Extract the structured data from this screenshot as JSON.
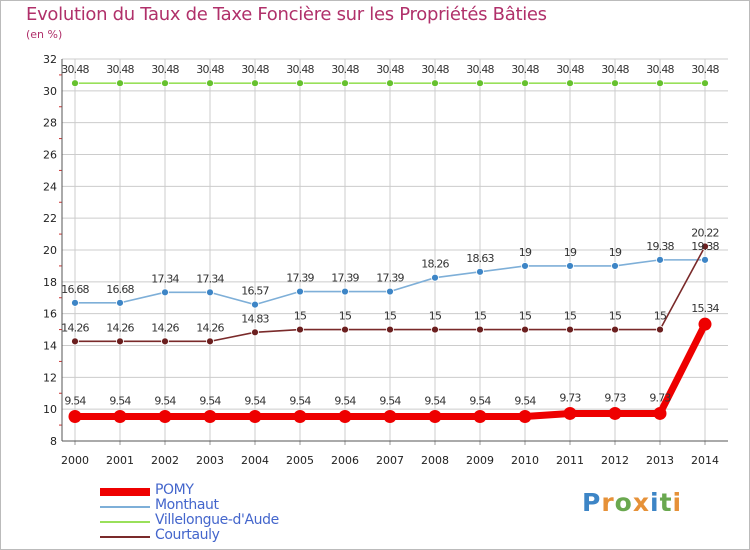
{
  "title": "Evolution du Taux de Taxe Foncière sur les Propriétés Bâties",
  "unit": "(en %)",
  "logo": [
    "P",
    "r",
    "o",
    "x",
    "i",
    "t",
    "i"
  ],
  "chart_data": {
    "type": "line",
    "title": "Evolution du Taux de Taxe Foncière sur les Propriétés Bâties",
    "ylabel": "(en %)",
    "xlabel": "",
    "ylim": [
      8,
      32
    ],
    "yticks": [
      8,
      10,
      12,
      14,
      16,
      18,
      20,
      22,
      24,
      26,
      28,
      30,
      32
    ],
    "categories": [
      "2000",
      "2001",
      "2002",
      "2003",
      "2004",
      "2005",
      "2006",
      "2007",
      "2008",
      "2009",
      "2010",
      "2011",
      "2012",
      "2013",
      "2014"
    ],
    "series": [
      {
        "name": "POMY",
        "color": "#ee0000",
        "marker": "#ee0000",
        "values": [
          9.54,
          9.54,
          9.54,
          9.54,
          9.54,
          9.54,
          9.54,
          9.54,
          9.54,
          9.54,
          9.54,
          9.73,
          9.73,
          9.73,
          15.34
        ],
        "labels": [
          "9.54",
          "9.54",
          "9.54",
          "9.54",
          "9.54",
          "9.54",
          "9.54",
          "9.54",
          "9.54",
          "9.54",
          "9.54",
          "9.73",
          "9.73",
          "9.73",
          "15.34"
        ]
      },
      {
        "name": "Monthaut",
        "color": "#7eafd8",
        "marker": "#3d85c6",
        "values": [
          16.68,
          16.68,
          17.34,
          17.34,
          16.57,
          17.39,
          17.39,
          17.39,
          18.26,
          18.63,
          19,
          19,
          19,
          19.38,
          19.38
        ],
        "labels": [
          "16.68",
          "16.68",
          "17.34",
          "17.34",
          "16.57",
          "17.39",
          "17.39",
          "17.39",
          "18.26",
          "18.63",
          "19",
          "19",
          "19",
          "19.38",
          "19.38"
        ]
      },
      {
        "name": "Villelongue-d'Aude",
        "color": "#99e05a",
        "marker": "#66c12e",
        "values": [
          30.48,
          30.48,
          30.48,
          30.48,
          30.48,
          30.48,
          30.48,
          30.48,
          30.48,
          30.48,
          30.48,
          30.48,
          30.48,
          30.48,
          30.48
        ],
        "labels": [
          "30.48",
          "30.48",
          "30.48",
          "30.48",
          "30.48",
          "30.48",
          "30.48",
          "30.48",
          "30.48",
          "30.48",
          "30.48",
          "30.48",
          "30.48",
          "30.48",
          "30.48"
        ]
      },
      {
        "name": "Courtauly",
        "color": "#7a2a2a",
        "marker": "#6b1f1f",
        "values": [
          14.26,
          14.26,
          14.26,
          14.26,
          14.83,
          15,
          15,
          15,
          15,
          15,
          15,
          15,
          15,
          15,
          20.22
        ],
        "labels": [
          "14.26",
          "14.26",
          "14.26",
          "14.26",
          "14.83",
          "15",
          "15",
          "15",
          "15",
          "15",
          "15",
          "15",
          "15",
          "15",
          "20.22"
        ]
      }
    ],
    "legend_position": "bottom-left"
  }
}
